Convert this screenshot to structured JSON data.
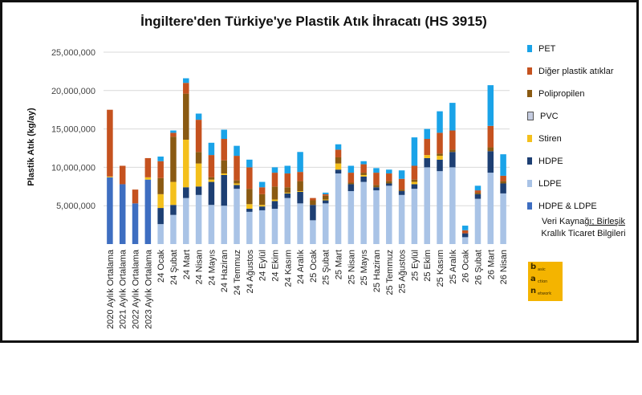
{
  "colors": {
    "PET": "#1aa3e8",
    "Diğer plastik atıklar": "#c5521f",
    "Polipropilen": "#8a5a12",
    "PVC": "#8c9dc4",
    "Stiren": "#f4c01c",
    "HDPE": "#1d3f73",
    "LDPE": "#a9c3e6",
    "HDPE & LDPE": "#3e6ec1"
  },
  "legend": {
    "items": [
      {
        "label": "PET",
        "color": "#1aa3e8"
      },
      {
        "label": "Diğer plastik atıklar",
        "color": "#c5521f"
      },
      {
        "label": "Polipropilen",
        "color": "#8a5a12"
      },
      {
        "label": "PVC",
        "color": "#8c9dc4"
      },
      {
        "label": "Stiren",
        "color": "#f4c01c"
      },
      {
        "label": "HDPE",
        "color": "#1d3f73"
      },
      {
        "label": "LDPE",
        "color": "#a9c3e6"
      },
      {
        "label": "HDPE & LDPE",
        "color": "#3e6ec1"
      }
    ]
  },
  "source": {
    "line1_prefix": "Veri Kayna",
    "line1_link": "ğı; Birleşik",
    "line2": "Krallık Ticaret Bilgileri"
  },
  "logo": {
    "letters": [
      "b",
      "a",
      "n"
    ],
    "words": [
      "asic",
      "ction",
      "etwork"
    ]
  },
  "chart_data": {
    "type": "bar",
    "stacked": true,
    "title": "İngiltere'den Türkiye'ye Plastik Atık İhracatı (HS 3915)",
    "xlabel": "",
    "ylabel": "Plastik Atık (kg/ay)",
    "ylim": [
      0,
      25000000
    ],
    "yticks": [
      "5,000,000",
      "10,000,000",
      "15,000,000",
      "20,000,000",
      "25,000,000"
    ],
    "grid": true,
    "legend_position": "right",
    "categories": [
      "2020 Aylık Ortalama",
      "2021 Aylık Ortalama",
      "2022 Aylık Ortalama",
      "2023 Aylık Ortalama",
      "24 Ocak",
      "24 Şubat",
      "24 Mart",
      "24 Nisan",
      "24 Mayıs",
      "24 Haziran",
      "24 Temmuz",
      "24 Ağustos",
      "24 Eylül",
      "24 Ekim",
      "24 Kasım",
      "24 Aralık",
      "25 Ocak",
      "25 Şubat",
      "25 Mart",
      "25 Nisan",
      "25 Mayıs",
      "25 Haziran",
      "25 Temmuz",
      "25 Ağustos",
      "25 Eylül",
      "25 Ekim",
      "25 Kasım",
      "25 Aralık",
      "26 Ocak",
      "26 Şubat",
      "26 Mart",
      "26 Nisan"
    ],
    "series": [
      {
        "name": "HDPE & LDPE",
        "values": [
          8700000,
          7800000,
          5300000,
          8400000,
          0,
          0,
          0,
          0,
          0,
          0,
          0,
          0,
          0,
          0,
          0,
          0,
          0,
          0,
          0,
          0,
          0,
          0,
          0,
          0,
          0,
          0,
          0,
          0,
          0,
          0,
          0,
          0
        ]
      },
      {
        "name": "LDPE",
        "values": [
          0,
          0,
          0,
          0,
          2600000,
          3800000,
          6000000,
          6400000,
          5100000,
          5000000,
          7200000,
          4200000,
          4400000,
          4600000,
          6000000,
          5300000,
          3100000,
          5300000,
          9200000,
          6900000,
          8100000,
          7000000,
          7600000,
          6400000,
          7200000,
          10000000,
          9500000,
          10000000,
          900000,
          5900000,
          9300000,
          6600000
        ]
      },
      {
        "name": "HDPE",
        "values": [
          0,
          0,
          0,
          0,
          2100000,
          1300000,
          1400000,
          1100000,
          3000000,
          4000000,
          500000,
          400000,
          500000,
          1000000,
          600000,
          1500000,
          2000000,
          400000,
          500000,
          900000,
          700000,
          400000,
          300000,
          500000,
          600000,
          1200000,
          1500000,
          2000000,
          500000,
          600000,
          2800000,
          1300000
        ]
      },
      {
        "name": "PVC",
        "values": [
          0,
          0,
          0,
          0,
          0,
          0,
          0,
          0,
          0,
          0,
          0,
          0,
          0,
          0,
          0,
          0,
          0,
          0,
          0,
          0,
          0,
          0,
          0,
          0,
          0,
          0,
          0,
          0,
          0,
          0,
          0,
          0
        ]
      },
      {
        "name": "Stiren",
        "values": [
          100000,
          0,
          0,
          300000,
          1800000,
          3000000,
          6200000,
          3000000,
          300000,
          200000,
          200000,
          600000,
          200000,
          200000,
          100000,
          100000,
          0,
          100000,
          800000,
          0,
          200000,
          0,
          0,
          0,
          300000,
          400000,
          500000,
          0,
          0,
          0,
          0,
          0
        ]
      },
      {
        "name": "Polipropilen",
        "values": [
          0,
          0,
          0,
          0,
          2100000,
          5900000,
          6000000,
          1500000,
          300000,
          1700000,
          400000,
          2000000,
          1400000,
          1700000,
          700000,
          1300000,
          600000,
          500000,
          800000,
          200000,
          300000,
          300000,
          300000,
          200000,
          300000,
          0,
          300000,
          300000,
          0,
          200000,
          500000,
          300000
        ]
      },
      {
        "name": "Diğer plastik atıklar",
        "values": [
          8700000,
          2400000,
          1800000,
          2500000,
          2200000,
          500000,
          1400000,
          4200000,
          2900000,
          2800000,
          3200000,
          2800000,
          900000,
          1800000,
          1800000,
          1200000,
          300000,
          200000,
          1000000,
          1300000,
          1100000,
          1600000,
          1000000,
          1400000,
          1800000,
          2100000,
          2700000,
          2500000,
          400000,
          300000,
          2800000,
          700000
        ]
      },
      {
        "name": "PET",
        "values": [
          0,
          0,
          0,
          0,
          600000,
          300000,
          600000,
          800000,
          1600000,
          1200000,
          1300000,
          1000000,
          700000,
          700000,
          1000000,
          2600000,
          0,
          200000,
          700000,
          900000,
          400000,
          600000,
          500000,
          1100000,
          3700000,
          1300000,
          2800000,
          3600000,
          600000,
          600000,
          5300000,
          2800000
        ]
      }
    ]
  }
}
